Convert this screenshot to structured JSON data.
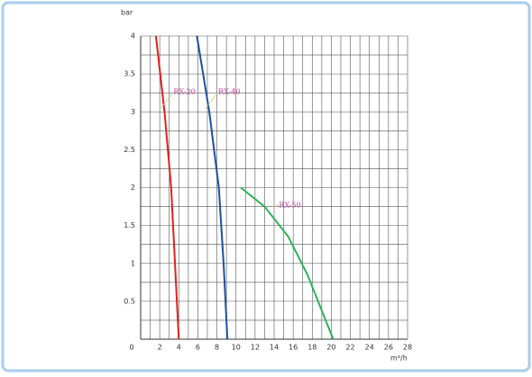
{
  "chart_data": {
    "type": "line",
    "x_label": "m³/h",
    "y_label": "bar",
    "xlim": [
      0,
      28
    ],
    "ylim": [
      0,
      4
    ],
    "xticks": [
      0,
      2,
      4,
      6,
      8,
      10,
      12,
      14,
      16,
      18,
      20,
      22,
      24,
      26,
      28
    ],
    "yticks": [
      0.5,
      1,
      1.5,
      2,
      2.5,
      3,
      3.5,
      4
    ],
    "x_minor_ticks": [
      1,
      3,
      5,
      7,
      9,
      11,
      13,
      15,
      17,
      19,
      21,
      23,
      25,
      27
    ],
    "y_minor_ticks": [
      0.25,
      0.75,
      1.25,
      1.75,
      2.25,
      2.75,
      3.25,
      3.75
    ],
    "grid": true,
    "series": [
      {
        "name": "RX-20",
        "color": "#e02020",
        "x": [
          1.6,
          2.5,
          3.2,
          3.6,
          4.0
        ],
        "values": [
          4,
          3,
          2,
          1,
          0
        ]
      },
      {
        "name": "RX-40",
        "color": "#1f4fa0",
        "x": [
          5.9,
          7.2,
          8.2,
          8.7,
          9.1
        ],
        "values": [
          4,
          3,
          2,
          1,
          0
        ]
      },
      {
        "name": "RX-50",
        "color": "#2db35a",
        "x": [
          10.5,
          13,
          15.5,
          17.5,
          20.2
        ],
        "values": [
          2,
          1.75,
          1.35,
          0.85,
          0
        ]
      }
    ]
  }
}
